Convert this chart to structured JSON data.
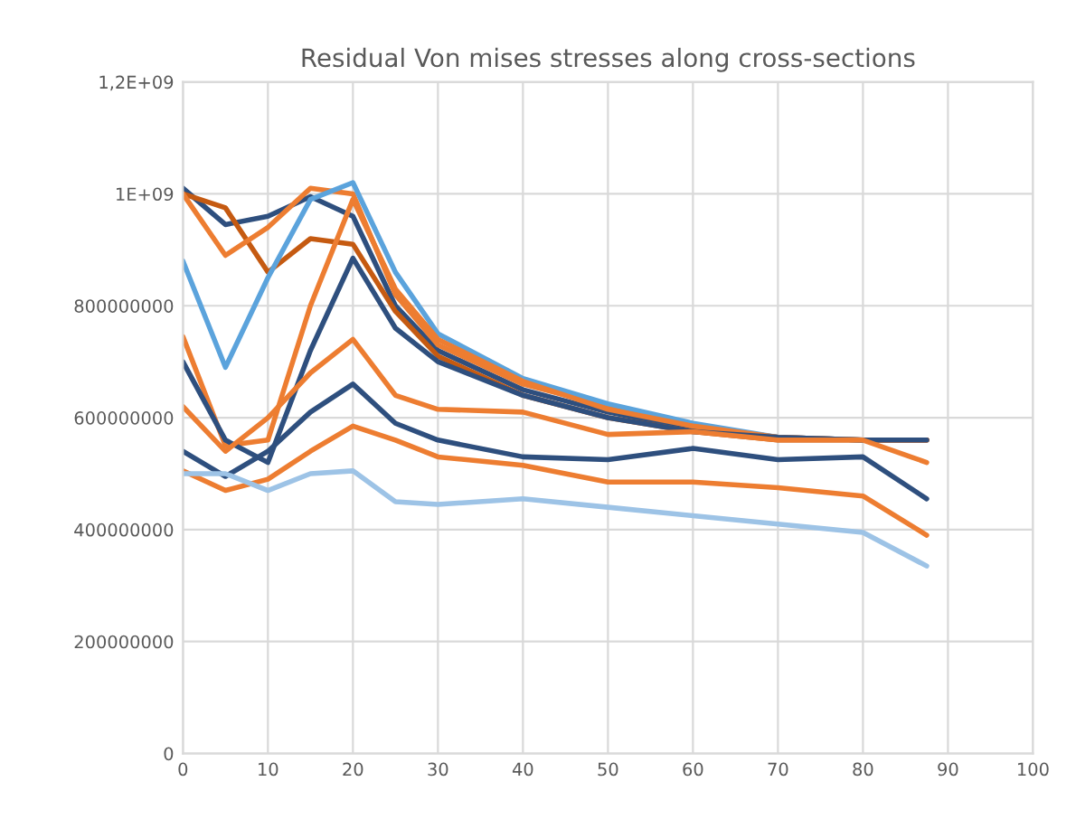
{
  "chart_data": {
    "type": "line",
    "title": "Residual Von mises stresses along cross-sections",
    "x": [
      0,
      5,
      10,
      15,
      20,
      25,
      30,
      40,
      50,
      60,
      70,
      80,
      87.5
    ],
    "series": [
      {
        "color": "#2e4f7e",
        "values": [
          1010000000,
          945000000,
          960000000,
          995000000,
          960000000,
          800000000,
          720000000,
          650000000,
          610000000,
          580000000,
          565000000,
          560000000,
          560000000
        ]
      },
      {
        "color": "#c55a11",
        "values": [
          1000000000,
          975000000,
          860000000,
          920000000,
          910000000,
          790000000,
          710000000,
          640000000,
          600000000,
          575000000,
          560000000,
          560000000,
          560000000
        ]
      },
      {
        "color": "#ed7d31",
        "values": [
          1000000000,
          890000000,
          940000000,
          1010000000,
          1000000000,
          820000000,
          730000000,
          660000000,
          620000000,
          585000000,
          565000000,
          560000000,
          560000000
        ]
      },
      {
        "color": "#5ba3dc",
        "values": [
          880000000,
          690000000,
          850000000,
          990000000,
          1020000000,
          860000000,
          750000000,
          670000000,
          625000000,
          590000000,
          565000000,
          560000000,
          null
        ]
      },
      {
        "color": "#ed7d31",
        "values": [
          745000000,
          550000000,
          560000000,
          800000000,
          990000000,
          830000000,
          740000000,
          665000000,
          615000000,
          585000000,
          565000000,
          560000000,
          560000000
        ]
      },
      {
        "color": "#2e4f7e",
        "values": [
          700000000,
          560000000,
          520000000,
          720000000,
          885000000,
          760000000,
          700000000,
          640000000,
          600000000,
          575000000,
          565000000,
          560000000,
          560000000
        ]
      },
      {
        "color": "#ed7d31",
        "values": [
          620000000,
          540000000,
          600000000,
          680000000,
          740000000,
          640000000,
          615000000,
          610000000,
          570000000,
          575000000,
          560000000,
          560000000,
          520000000
        ]
      },
      {
        "color": "#2e4f7e",
        "values": [
          540000000,
          495000000,
          540000000,
          610000000,
          660000000,
          590000000,
          560000000,
          530000000,
          525000000,
          545000000,
          525000000,
          530000000,
          455000000
        ]
      },
      {
        "color": "#ed7d31",
        "values": [
          505000000,
          470000000,
          490000000,
          540000000,
          585000000,
          560000000,
          530000000,
          515000000,
          485000000,
          485000000,
          475000000,
          460000000,
          390000000
        ]
      },
      {
        "color": "#9dc3e6",
        "values": [
          500000000,
          500000000,
          470000000,
          500000000,
          505000000,
          450000000,
          445000000,
          455000000,
          440000000,
          425000000,
          410000000,
          395000000,
          335000000
        ]
      }
    ],
    "xlim": [
      0,
      100
    ],
    "xticks": [
      0,
      10,
      20,
      30,
      40,
      50,
      60,
      70,
      80,
      90,
      100
    ],
    "ylim": [
      0,
      1200000000
    ],
    "yticks": [
      0,
      200000000,
      400000000,
      600000000,
      800000000,
      {
        "value": 1000000000,
        "label": "1E+09"
      },
      {
        "value": 1200000000,
        "label": "1,2E+09"
      }
    ],
    "grid": true,
    "line_style": "solid",
    "marker": "none"
  }
}
